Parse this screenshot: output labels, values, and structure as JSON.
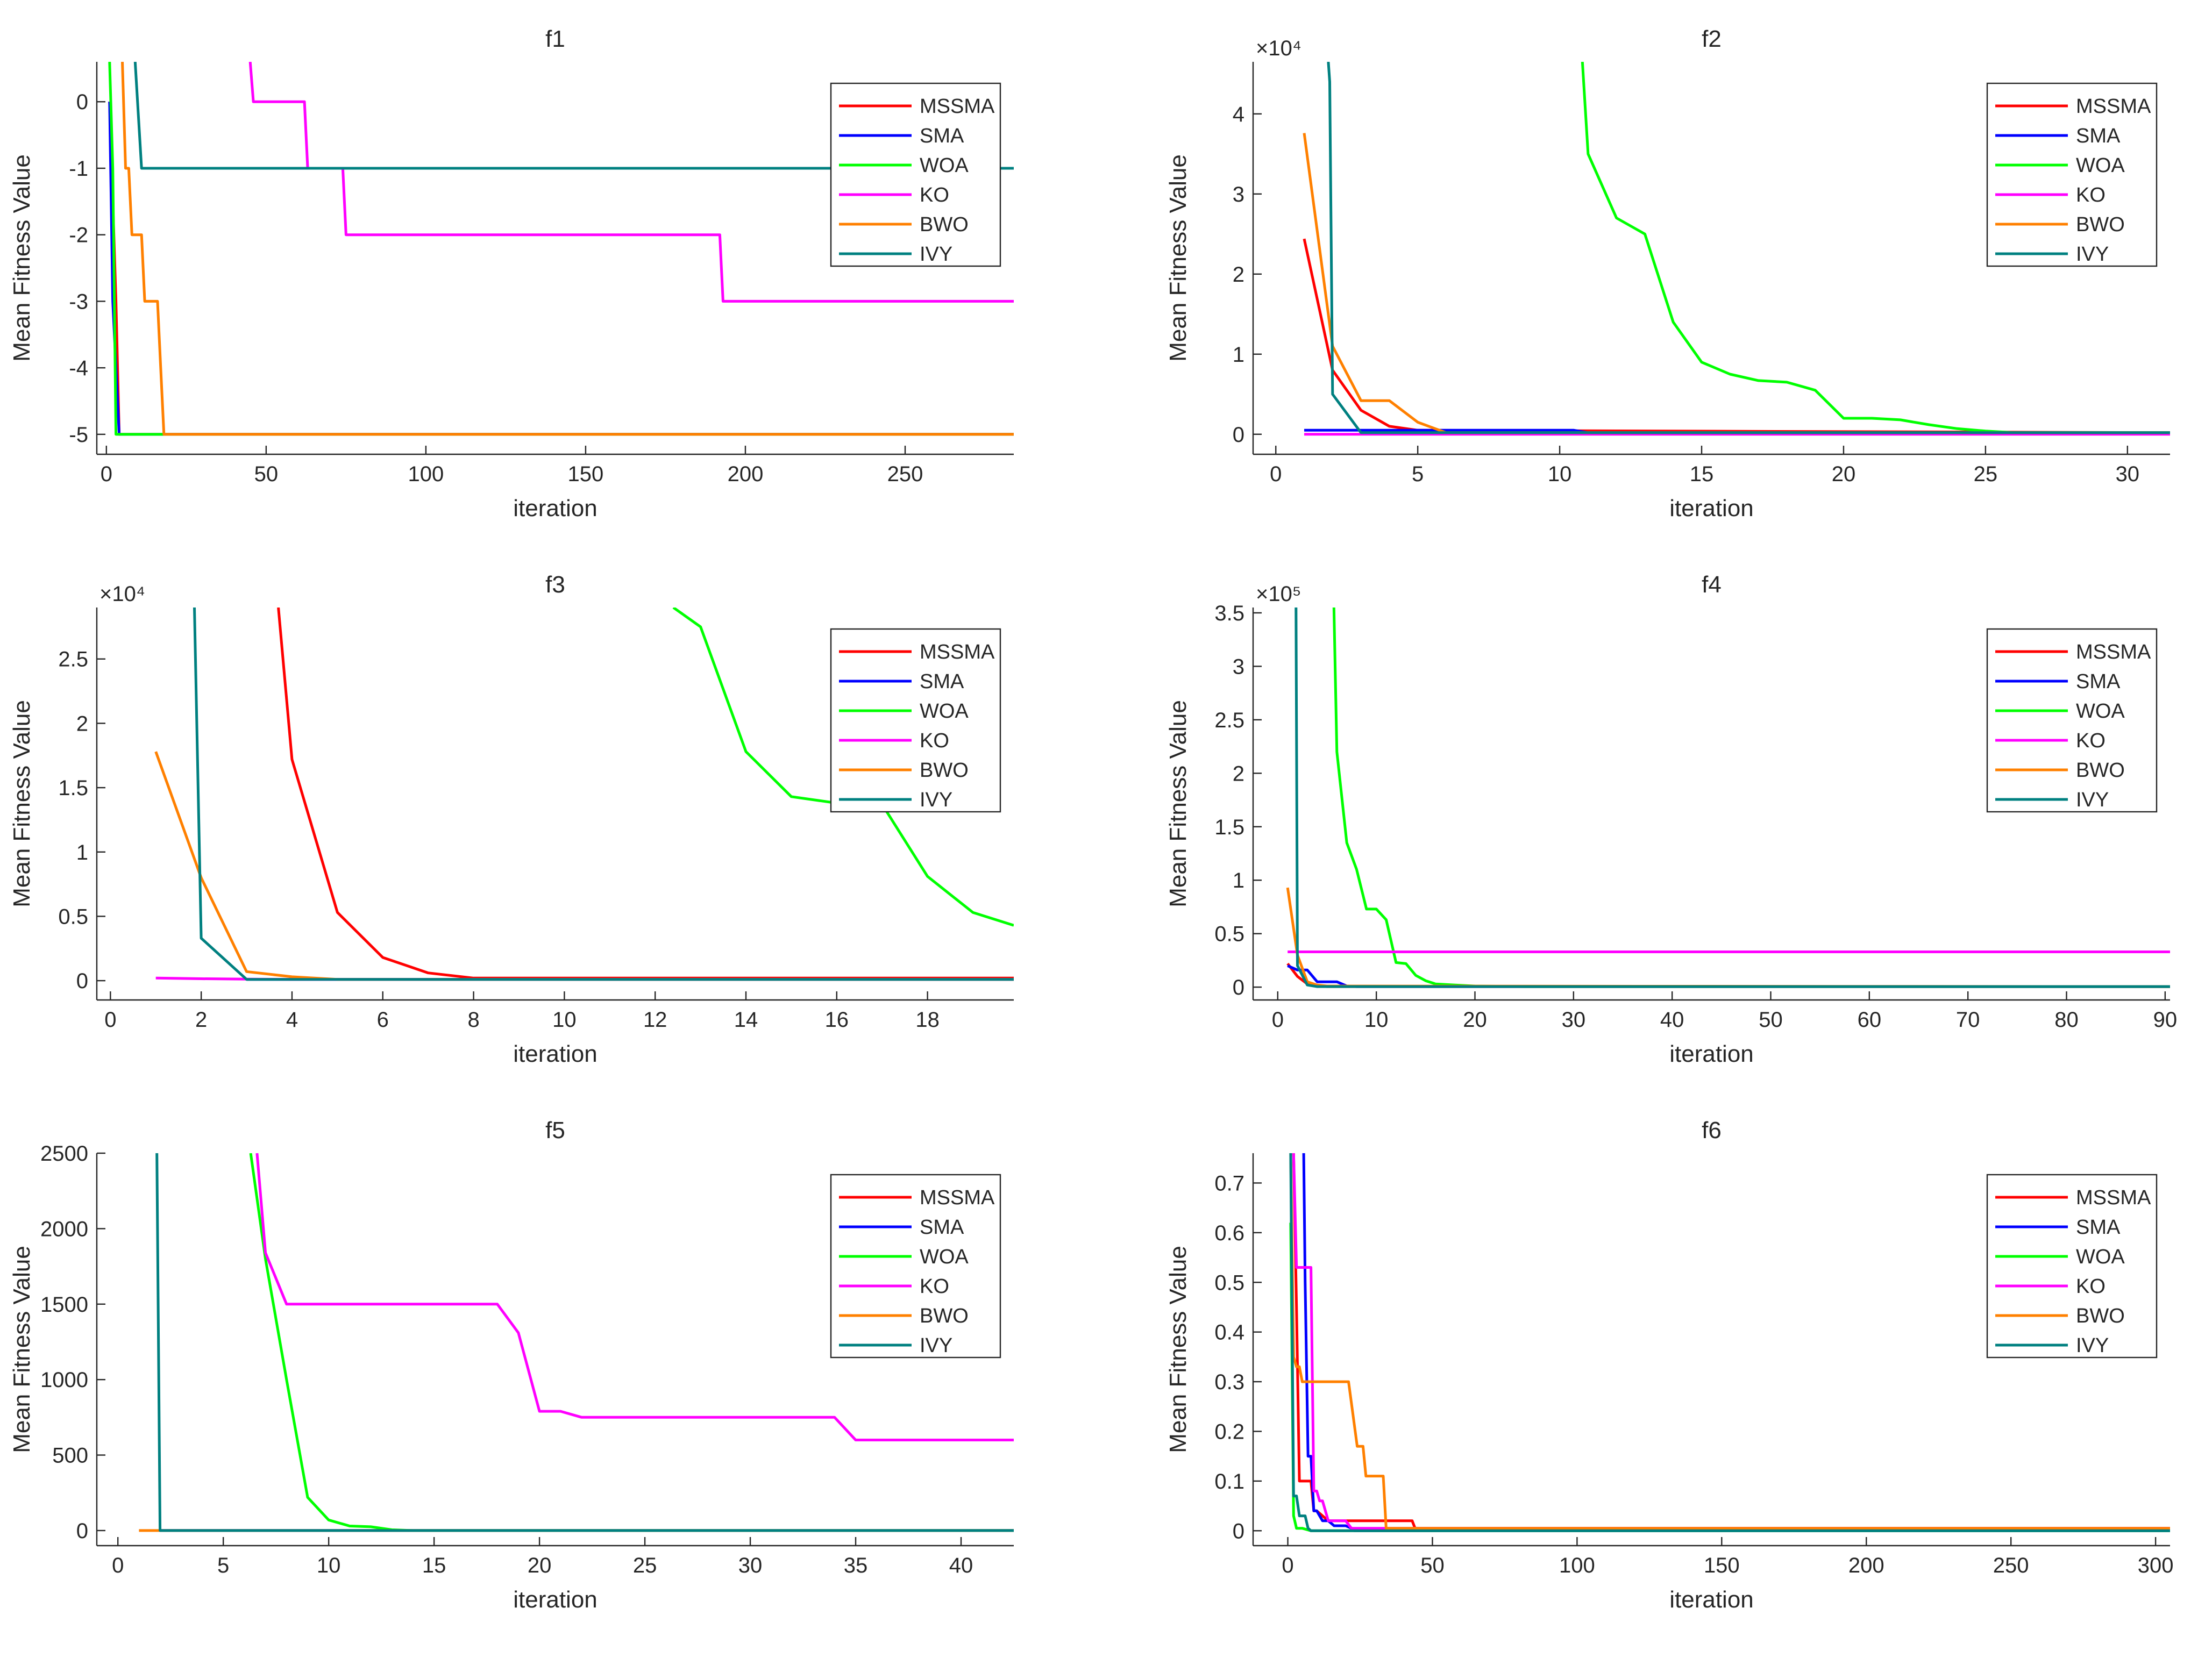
{
  "figure": {
    "description_title": ""
  },
  "legend_labels": [
    "MSSMA",
    "SMA",
    "WOA",
    "KO",
    "BWO",
    "IVY"
  ],
  "colors": {
    "MSSMA": "#ff0000",
    "SMA": "#0000ff",
    "WOA": "#00ff00",
    "KO": "#ff00ff",
    "BWO": "#ff8000",
    "IVY": "#008080"
  },
  "chart_data": [
    {
      "type": "line",
      "title": "f1",
      "xlabel": "iteration",
      "ylabel": "Mean Fitness Value",
      "exponent_label": "",
      "xlim": [
        -3,
        284
      ],
      "ylim": [
        -5.3,
        0.6
      ],
      "xticks": [
        0,
        50,
        100,
        150,
        200,
        250
      ],
      "xtick_labels": [
        "0",
        "50",
        "100",
        "150",
        "200",
        "250"
      ],
      "yticks": [
        0,
        -1,
        -2,
        -3,
        -4,
        -5
      ],
      "ytick_labels": [
        "0",
        "-1",
        "-2",
        "-3",
        "-4",
        "-5"
      ],
      "series": [
        {
          "name": "MSSMA",
          "x": [
            1,
            3,
            4,
            284
          ],
          "y": [
            0,
            -3,
            -5,
            -5
          ]
        },
        {
          "name": "SMA",
          "x": [
            1,
            2,
            4,
            284
          ],
          "y": [
            0,
            -3,
            -5,
            -5
          ]
        },
        {
          "name": "WOA",
          "x": [
            1,
            2,
            3,
            4,
            284
          ],
          "y": [
            0.6,
            -1,
            -5,
            -5,
            -5
          ]
        },
        {
          "name": "KO",
          "x": [
            45,
            46,
            62,
            63,
            74,
            75,
            192,
            193,
            284
          ],
          "y": [
            0.6,
            0,
            0,
            -1,
            -1,
            -2,
            -2,
            -3,
            -3
          ]
        },
        {
          "name": "BWO",
          "x": [
            5,
            6,
            7,
            8,
            10,
            11,
            12,
            15,
            16,
            17,
            18,
            284
          ],
          "y": [
            0.6,
            -1,
            -1,
            -2,
            -2,
            -2,
            -3,
            -3,
            -3,
            -4,
            -5,
            -5
          ]
        },
        {
          "name": "IVY",
          "x": [
            9,
            11,
            284
          ],
          "y": [
            0.6,
            -1,
            -1
          ]
        }
      ]
    },
    {
      "type": "line",
      "title": "f2",
      "xlabel": "iteration",
      "ylabel": "Mean Fitness Value",
      "exponent_label": "×10⁴",
      "xlim": [
        -0.8,
        31.5
      ],
      "ylim": [
        -0.25,
        4.65
      ],
      "xticks": [
        0,
        5,
        10,
        15,
        20,
        25,
        30
      ],
      "xtick_labels": [
        "0",
        "5",
        "10",
        "15",
        "20",
        "25",
        "30"
      ],
      "yticks": [
        0,
        1,
        2,
        3,
        4
      ],
      "ytick_labels": [
        "0",
        "1",
        "2",
        "3",
        "4"
      ],
      "series": [
        {
          "name": "MSSMA",
          "x": [
            1,
            2,
            3,
            4,
            5,
            31.5
          ],
          "y": [
            2.44,
            0.8,
            0.3,
            0.1,
            0.05,
            0.02
          ]
        },
        {
          "name": "SMA",
          "x": [
            1,
            10.5,
            11,
            31.5
          ],
          "y": [
            0.05,
            0.05,
            0.02,
            0.02
          ]
        },
        {
          "name": "WOA",
          "x": [
            10.8,
            11,
            12,
            13,
            14,
            15,
            16,
            17,
            18,
            19,
            20,
            21,
            22,
            23,
            24,
            25,
            26,
            31.5
          ],
          "y": [
            4.65,
            3.5,
            2.7,
            2.5,
            1.4,
            0.9,
            0.75,
            0.67,
            0.65,
            0.55,
            0.2,
            0.2,
            0.18,
            0.12,
            0.07,
            0.04,
            0.02,
            0.02
          ]
        },
        {
          "name": "KO",
          "x": [
            1,
            31.5
          ],
          "y": [
            0,
            0
          ]
        },
        {
          "name": "BWO",
          "x": [
            1,
            2,
            3,
            4,
            5,
            6,
            31.5
          ],
          "y": [
            3.76,
            1.1,
            0.42,
            0.42,
            0.15,
            0.02,
            0.02
          ]
        },
        {
          "name": "IVY",
          "x": [
            1.85,
            1.9,
            2,
            3,
            31.5
          ],
          "y": [
            4.65,
            4.4,
            0.5,
            0.02,
            0.02
          ]
        }
      ]
    },
    {
      "type": "line",
      "title": "f3",
      "xlabel": "iteration",
      "ylabel": "Mean Fitness Value",
      "exponent_label": "×10⁴",
      "xlim": [
        -0.3,
        19.9
      ],
      "ylim": [
        -0.15,
        2.9
      ],
      "xticks": [
        0,
        2,
        4,
        6,
        8,
        10,
        12,
        14,
        16,
        18
      ],
      "xtick_labels": [
        "0",
        "2",
        "4",
        "6",
        "8",
        "10",
        "12",
        "14",
        "16",
        "18"
      ],
      "yticks": [
        0,
        0.5,
        1,
        1.5,
        2,
        2.5
      ],
      "ytick_labels": [
        "0",
        "0.5",
        "1",
        "1.5",
        "2",
        "2.5"
      ],
      "series": [
        {
          "name": "MSSMA",
          "x": [
            3.7,
            4,
            5,
            6,
            7,
            8,
            19.9
          ],
          "y": [
            2.9,
            1.72,
            0.53,
            0.18,
            0.06,
            0.02,
            0.02
          ]
        },
        {
          "name": "SMA",
          "x": [
            3,
            19.9
          ],
          "y": [
            0.01,
            0.01
          ]
        },
        {
          "name": "WOA",
          "x": [
            12.4,
            13,
            14,
            15,
            16,
            17,
            18,
            19,
            19.9
          ],
          "y": [
            2.9,
            2.75,
            1.78,
            1.43,
            1.38,
            1.37,
            0.81,
            0.53,
            0.43
          ]
        },
        {
          "name": "KO",
          "x": [
            1,
            2,
            3,
            4,
            19.9
          ],
          "y": [
            0.02,
            0.015,
            0.012,
            0.01,
            0.01
          ]
        },
        {
          "name": "BWO",
          "x": [
            1,
            2,
            3,
            4,
            5,
            19.9
          ],
          "y": [
            1.78,
            0.8,
            0.07,
            0.03,
            0.01,
            0.01
          ]
        },
        {
          "name": "IVY",
          "x": [
            1.85,
            2,
            3,
            19.9
          ],
          "y": [
            2.9,
            0.33,
            0.01,
            0.01
          ]
        }
      ]
    },
    {
      "type": "line",
      "title": "f4",
      "xlabel": "iteration",
      "ylabel": "Mean Fitness Value",
      "exponent_label": "×10⁵",
      "xlim": [
        -2.5,
        90.5
      ],
      "ylim": [
        -0.12,
        3.55
      ],
      "xticks": [
        0,
        10,
        20,
        30,
        40,
        50,
        60,
        70,
        80,
        90
      ],
      "xtick_labels": [
        "0",
        "10",
        "20",
        "30",
        "40",
        "50",
        "60",
        "70",
        "80",
        "90"
      ],
      "yticks": [
        0,
        0.5,
        1,
        1.5,
        2,
        2.5,
        3,
        3.5
      ],
      "ytick_labels": [
        "0",
        "0.5",
        "1",
        "1.5",
        "2",
        "2.5",
        "3",
        "3.5"
      ],
      "series": [
        {
          "name": "MSSMA",
          "x": [
            1,
            2,
            3,
            4,
            5,
            90.5
          ],
          "y": [
            0.22,
            0.1,
            0.03,
            0.01,
            0.005,
            0.005
          ]
        },
        {
          "name": "SMA",
          "x": [
            1,
            2,
            3,
            4,
            6,
            7,
            8,
            90.5
          ],
          "y": [
            0.2,
            0.16,
            0.16,
            0.05,
            0.05,
            0.01,
            0.005,
            0.005
          ]
        },
        {
          "name": "WOA",
          "x": [
            5.7,
            6,
            7,
            8,
            9,
            10,
            11,
            12,
            13,
            14,
            15,
            16,
            18,
            20,
            25,
            90.5
          ],
          "y": [
            3.55,
            2.2,
            1.35,
            1.1,
            0.73,
            0.73,
            0.63,
            0.23,
            0.22,
            0.11,
            0.06,
            0.03,
            0.02,
            0.01,
            0.005,
            0.005
          ]
        },
        {
          "name": "KO",
          "x": [
            1,
            90.5
          ],
          "y": [
            0.33,
            0.33
          ]
        },
        {
          "name": "BWO",
          "x": [
            1,
            2,
            3,
            4,
            5,
            90.5
          ],
          "y": [
            0.93,
            0.3,
            0.05,
            0.02,
            0.01,
            0.005
          ]
        },
        {
          "name": "IVY",
          "x": [
            1.85,
            2,
            3,
            4,
            90.5
          ],
          "y": [
            3.55,
            0.2,
            0.02,
            0.005,
            0.005
          ]
        }
      ]
    },
    {
      "type": "line",
      "title": "f5",
      "xlabel": "iteration",
      "ylabel": "Mean Fitness Value",
      "exponent_label": "",
      "xlim": [
        -1,
        42.5
      ],
      "ylim": [
        -100,
        2500
      ],
      "xticks": [
        0,
        5,
        10,
        15,
        20,
        25,
        30,
        35,
        40
      ],
      "xtick_labels": [
        "0",
        "5",
        "10",
        "15",
        "20",
        "25",
        "30",
        "35",
        "40"
      ],
      "yticks": [
        0,
        500,
        1000,
        1500,
        2000,
        2500
      ],
      "ytick_labels": [
        "0",
        "500",
        "1000",
        "1500",
        "2000",
        "2500"
      ],
      "series": [
        {
          "name": "MSSMA",
          "x": [
            2,
            42.5
          ],
          "y": [
            0,
            0
          ]
        },
        {
          "name": "SMA",
          "x": [
            2,
            42.5
          ],
          "y": [
            0,
            0
          ]
        },
        {
          "name": "WOA",
          "x": [
            6.3,
            7,
            8,
            9,
            10,
            11,
            12,
            13,
            14,
            42.5
          ],
          "y": [
            2500,
            1800,
            1000,
            220,
            70,
            30,
            25,
            5,
            0,
            0
          ]
        },
        {
          "name": "KO",
          "x": [
            6.6,
            7,
            8,
            18,
            19,
            20,
            21,
            22,
            34,
            35,
            42.5
          ],
          "y": [
            2500,
            1840,
            1500,
            1500,
            1310,
            790,
            790,
            750,
            750,
            600,
            600
          ]
        },
        {
          "name": "BWO",
          "x": [
            1,
            2,
            42.5
          ],
          "y": [
            0,
            0,
            0
          ]
        },
        {
          "name": "IVY",
          "x": [
            1.85,
            2,
            3,
            42.5
          ],
          "y": [
            2500,
            0,
            0,
            0
          ]
        }
      ]
    },
    {
      "type": "line",
      "title": "f6",
      "xlabel": "iteration",
      "ylabel": "Mean Fitness Value",
      "exponent_label": "",
      "xlim": [
        -12,
        305
      ],
      "ylim": [
        -0.03,
        0.76
      ],
      "xticks": [
        0,
        50,
        100,
        150,
        200,
        250,
        300
      ],
      "xtick_labels": [
        "0",
        "50",
        "100",
        "150",
        "200",
        "250",
        "300"
      ],
      "yticks": [
        0,
        0.1,
        0.2,
        0.3,
        0.4,
        0.5,
        0.6,
        0.7
      ],
      "ytick_labels": [
        "0",
        "0.1",
        "0.2",
        "0.3",
        "0.4",
        "0.5",
        "0.6",
        "0.7"
      ],
      "series": [
        {
          "name": "MSSMA",
          "x": [
            2,
            3,
            4,
            5,
            8,
            9,
            10,
            14,
            15,
            20,
            22,
            43,
            44,
            305
          ],
          "y": [
            0.76,
            0.45,
            0.1,
            0.1,
            0.1,
            0.04,
            0.04,
            0.02,
            0.02,
            0.02,
            0.02,
            0.02,
            0.005,
            0.005
          ]
        },
        {
          "name": "SMA",
          "x": [
            5.5,
            6,
            7,
            8,
            9,
            10,
            12,
            14,
            16,
            20,
            22,
            23,
            305
          ],
          "y": [
            0.76,
            0.5,
            0.15,
            0.15,
            0.04,
            0.04,
            0.02,
            0.02,
            0.01,
            0.01,
            0.005,
            0,
            0
          ]
        },
        {
          "name": "WOA",
          "x": [
            1,
            2,
            3,
            5,
            8,
            15,
            305
          ],
          "y": [
            0.62,
            0.03,
            0.005,
            0.005,
            0,
            0,
            0
          ]
        },
        {
          "name": "KO",
          "x": [
            2,
            3,
            4,
            5,
            8,
            9,
            10,
            11,
            12,
            14,
            16,
            20,
            22,
            305
          ],
          "y": [
            0.76,
            0.53,
            0.53,
            0.53,
            0.53,
            0.08,
            0.08,
            0.06,
            0.06,
            0.02,
            0.02,
            0.02,
            0.005,
            0.005
          ]
        },
        {
          "name": "BWO",
          "x": [
            1,
            2,
            3,
            4,
            5,
            20,
            21,
            24,
            25,
            26,
            27,
            31,
            32,
            33,
            34,
            55,
            305
          ],
          "y": [
            0.76,
            0.35,
            0.33,
            0.33,
            0.3,
            0.3,
            0.3,
            0.17,
            0.17,
            0.17,
            0.11,
            0.11,
            0.11,
            0.11,
            0.005,
            0.005,
            0.005
          ]
        },
        {
          "name": "IVY",
          "x": [
            1,
            2,
            3,
            4,
            5,
            6,
            7,
            8,
            305
          ],
          "y": [
            0.76,
            0.07,
            0.07,
            0.03,
            0.03,
            0.03,
            0.005,
            0,
            0
          ]
        }
      ]
    }
  ]
}
